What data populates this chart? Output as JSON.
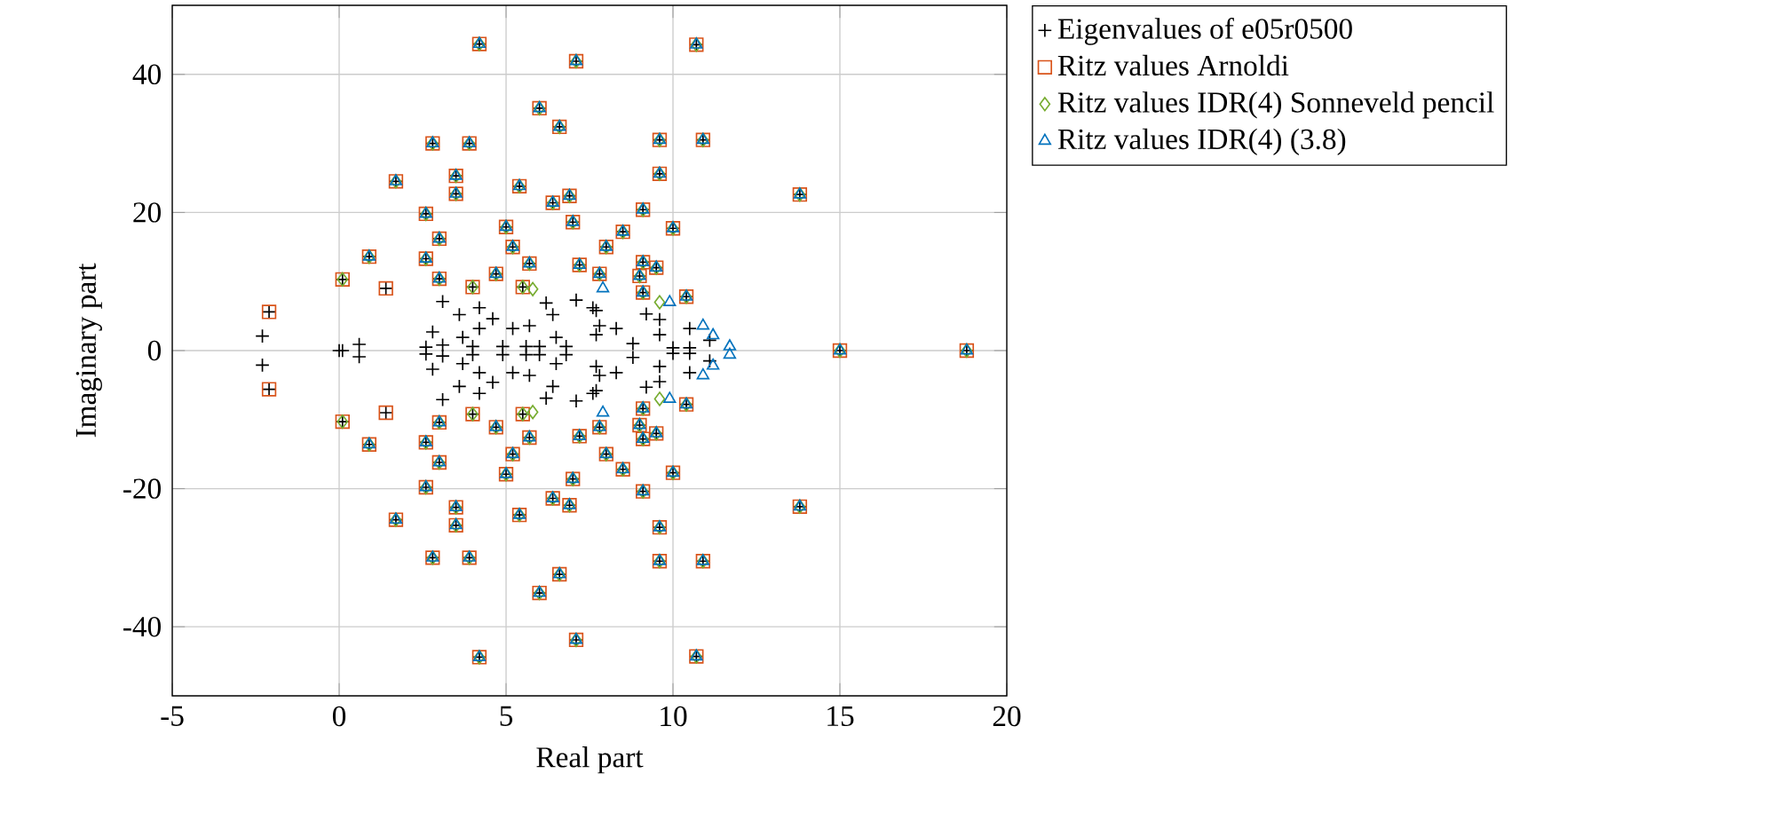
{
  "chart_data": {
    "type": "scatter",
    "xlabel": "Real part",
    "ylabel": "Imaginary part",
    "xlim": [
      -5,
      20
    ],
    "ylim": [
      -50,
      50
    ],
    "xticks": [
      -5,
      0,
      5,
      10,
      15,
      20
    ],
    "yticks": [
      -40,
      -20,
      0,
      20,
      40
    ],
    "grid": true,
    "legend": "top right",
    "series": [
      {
        "name": "Eigenvalues of e05r0500",
        "color": "#000000",
        "marker": "cross",
        "x": [
          4.2,
          7.1,
          6.0,
          6.6,
          2.8,
          3.9,
          1.7,
          3.5,
          3.5,
          5.4,
          6.4,
          6.9,
          2.6,
          7.0,
          5.0,
          3.0,
          5.2,
          0.9,
          2.6,
          5.7,
          7.2,
          4.7,
          3.0,
          0.1,
          1.4,
          4.0,
          5.5,
          -2.1,
          10.7,
          9.6,
          10.9,
          9.6,
          13.8,
          9.1,
          8.5,
          10.0,
          8.0,
          7.8,
          9.1,
          9.5,
          9.0,
          9.1,
          10.4,
          -2.3,
          0.6,
          3.1,
          3.6,
          4.2,
          4.6,
          2.8,
          4.2,
          3.7,
          5.2,
          5.7,
          6.2,
          6.4,
          7.1,
          7.6,
          6.5,
          2.6,
          3.1,
          4.0,
          4.9,
          5.6,
          6.0,
          6.8,
          7.7,
          7.8,
          8.3,
          7.7,
          8.8,
          9.2,
          9.6,
          9.6,
          10.5,
          10.0,
          10.5,
          11.1,
          4.2,
          7.1,
          6.0,
          6.6,
          2.8,
          3.9,
          1.7,
          3.5,
          3.5,
          5.4,
          6.4,
          6.9,
          2.6,
          7.0,
          5.0,
          3.0,
          5.2,
          0.9,
          2.6,
          5.7,
          7.2,
          4.7,
          3.0,
          0.1,
          1.4,
          4.0,
          5.5,
          -2.1,
          10.7,
          9.6,
          10.9,
          9.6,
          13.8,
          9.1,
          8.5,
          10.0,
          8.0,
          7.8,
          9.1,
          9.5,
          9.0,
          9.1,
          10.4,
          -2.3,
          0.6,
          3.1,
          3.6,
          4.2,
          4.6,
          2.8,
          4.2,
          3.7,
          5.2,
          5.7,
          6.2,
          6.4,
          7.1,
          7.6,
          6.5,
          2.6,
          3.1,
          4.0,
          4.9,
          5.6,
          6.0,
          6.8,
          7.7,
          7.8,
          8.3,
          7.7,
          8.8,
          9.2,
          9.6,
          9.6,
          10.5,
          10.0,
          10.5,
          11.1,
          15,
          18.8,
          0,
          0.1
        ],
        "values": [
          44.4,
          41.9,
          35.1,
          32.4,
          30,
          30,
          24.5,
          25.3,
          22.7,
          23.8,
          21.4,
          22.4,
          19.8,
          18.6,
          17.9,
          16.2,
          15,
          13.6,
          13.3,
          12.6,
          12.4,
          11.1,
          10.4,
          10.3,
          9,
          9.2,
          9.2,
          5.6,
          44.3,
          30.5,
          30.5,
          25.6,
          22.6,
          20.4,
          17.2,
          17.7,
          15,
          11.1,
          12.8,
          12,
          10.8,
          8.4,
          7.8,
          2.1,
          0.9,
          7.1,
          5.2,
          6.2,
          4.6,
          2.7,
          3.2,
          1.9,
          3.2,
          3.6,
          6.9,
          5.2,
          7.3,
          6.2,
          1.9,
          0.5,
          0.8,
          0.6,
          0.6,
          0.6,
          0.6,
          0.6,
          5.8,
          3.6,
          3.2,
          2.3,
          1,
          5.3,
          4.5,
          2.3,
          3.2,
          0.4,
          0.4,
          1.5,
          -44.4,
          -41.9,
          -35.1,
          -32.4,
          -30,
          -30,
          -24.5,
          -25.3,
          -22.7,
          -23.8,
          -21.4,
          -22.4,
          -19.8,
          -18.6,
          -17.9,
          -16.2,
          -15,
          -13.6,
          -13.3,
          -12.6,
          -12.4,
          -11.1,
          -10.4,
          -10.3,
          -9,
          -9.2,
          -9.2,
          -5.6,
          -44.3,
          -30.5,
          -30.5,
          -25.6,
          -22.6,
          -20.4,
          -17.2,
          -17.7,
          -15,
          -11.1,
          -12.8,
          -12,
          -10.8,
          -8.4,
          -7.8,
          -2.1,
          -0.9,
          -7.1,
          -5.2,
          -6.2,
          -4.6,
          -2.7,
          -3.2,
          -1.9,
          -3.2,
          -3.6,
          -6.9,
          -5.2,
          -7.3,
          -6.2,
          -1.9,
          -0.5,
          -0.8,
          -0.6,
          -0.6,
          -0.6,
          -0.6,
          -0.6,
          -5.8,
          -3.6,
          -3.2,
          -2.3,
          -1,
          -5.3,
          -4.5,
          -2.3,
          -3.2,
          -0.4,
          -0.4,
          -1.5,
          0,
          0,
          0,
          0
        ]
      },
      {
        "name": "Ritz values Arnoldi",
        "color": "#d95319",
        "marker": "square",
        "x": [
          4.2,
          7.1,
          6.0,
          6.6,
          2.8,
          3.9,
          1.7,
          3.5,
          3.5,
          5.4,
          6.4,
          6.9,
          2.6,
          7.0,
          5.0,
          3.0,
          5.2,
          0.9,
          2.6,
          5.7,
          7.2,
          4.7,
          3.0,
          0.1,
          1.4,
          4.0,
          5.5,
          -2.1,
          10.7,
          9.6,
          10.9,
          9.6,
          13.8,
          9.1,
          8.5,
          10.0,
          8.0,
          7.8,
          9.1,
          9.5,
          9.0,
          9.1,
          10.4,
          4.2,
          7.1,
          6.0,
          6.6,
          2.8,
          3.9,
          1.7,
          3.5,
          3.5,
          5.4,
          6.4,
          6.9,
          2.6,
          7.0,
          5.0,
          3.0,
          5.2,
          0.9,
          2.6,
          5.7,
          7.2,
          4.7,
          3.0,
          0.1,
          1.4,
          4.0,
          5.5,
          -2.1,
          10.7,
          9.6,
          10.9,
          9.6,
          13.8,
          9.1,
          8.5,
          10.0,
          8.0,
          7.8,
          9.1,
          9.5,
          9.0,
          9.1,
          10.4,
          15,
          18.8
        ],
        "values": [
          44.4,
          41.9,
          35.1,
          32.4,
          30,
          30,
          24.5,
          25.3,
          22.7,
          23.8,
          21.4,
          22.4,
          19.8,
          18.6,
          17.9,
          16.2,
          15,
          13.6,
          13.3,
          12.6,
          12.4,
          11.1,
          10.4,
          10.3,
          9,
          9.2,
          9.2,
          5.6,
          44.3,
          30.5,
          30.5,
          25.6,
          22.6,
          20.4,
          17.2,
          17.7,
          15,
          11.1,
          12.8,
          12,
          10.8,
          8.4,
          7.8,
          -44.4,
          -41.9,
          -35.1,
          -32.4,
          -30,
          -30,
          -24.5,
          -25.3,
          -22.7,
          -23.8,
          -21.4,
          -22.4,
          -19.8,
          -18.6,
          -17.9,
          -16.2,
          -15,
          -13.6,
          -13.3,
          -12.6,
          -12.4,
          -11.1,
          -10.4,
          -10.3,
          -9,
          -9.2,
          -9.2,
          -5.6,
          -44.3,
          -30.5,
          -30.5,
          -25.6,
          -22.6,
          -20.4,
          -17.2,
          -17.7,
          -15,
          -11.1,
          -12.8,
          -12,
          -10.8,
          -8.4,
          -7.8,
          0,
          0
        ]
      },
      {
        "name": "Ritz values IDR(4) Sonneveld pencil",
        "color": "#77ac30",
        "marker": "diamond",
        "x": [
          4.2,
          7.1,
          6.0,
          6.6,
          2.8,
          3.9,
          1.7,
          3.5,
          3.5,
          5.4,
          6.4,
          6.9,
          2.6,
          7.0,
          5.0,
          3.0,
          5.2,
          0.9,
          2.6,
          5.7,
          7.2,
          4.7,
          3.0,
          0.1,
          4.0,
          5.5,
          10.7,
          9.6,
          10.9,
          9.6,
          13.8,
          9.1,
          8.5,
          10.0,
          8.0,
          7.8,
          9.1,
          9.5,
          9.0,
          9.1,
          10.4,
          5.8,
          9.6,
          4.2,
          7.1,
          6.0,
          6.6,
          2.8,
          3.9,
          1.7,
          3.5,
          3.5,
          5.4,
          6.4,
          6.9,
          2.6,
          7.0,
          5.0,
          3.0,
          5.2,
          0.9,
          2.6,
          5.7,
          7.2,
          4.7,
          3.0,
          0.1,
          4.0,
          5.5,
          10.7,
          9.6,
          10.9,
          9.6,
          13.8,
          9.1,
          8.5,
          10.0,
          8.0,
          7.8,
          9.1,
          9.5,
          9.0,
          9.1,
          10.4,
          5.8,
          9.6,
          15,
          18.8
        ],
        "values": [
          44.4,
          41.9,
          35.1,
          32.4,
          30,
          30,
          24.5,
          25.3,
          22.7,
          23.8,
          21.4,
          22.4,
          19.8,
          18.6,
          17.9,
          16.2,
          15,
          13.6,
          13.3,
          12.6,
          12.4,
          11.1,
          10.4,
          10.3,
          9.2,
          9.2,
          44.3,
          30.5,
          30.5,
          25.6,
          22.6,
          20.4,
          17.2,
          17.7,
          15,
          11.1,
          12.8,
          12,
          10.8,
          8.4,
          7.8,
          8.9,
          7,
          -44.4,
          -41.9,
          -35.1,
          -32.4,
          -30,
          -30,
          -24.5,
          -25.3,
          -22.7,
          -23.8,
          -21.4,
          -22.4,
          -19.8,
          -18.6,
          -17.9,
          -16.2,
          -15,
          -13.6,
          -13.3,
          -12.6,
          -12.4,
          -11.1,
          -10.4,
          -10.3,
          -9.2,
          -9.2,
          -44.3,
          -30.5,
          -30.5,
          -25.6,
          -22.6,
          -20.4,
          -17.2,
          -17.7,
          -15,
          -11.1,
          -12.8,
          -12,
          -10.8,
          -8.4,
          -7.8,
          -8.9,
          -7,
          0,
          0
        ]
      },
      {
        "name": "Ritz values IDR(4) (3.8)",
        "color": "#0072bd",
        "marker": "triangle",
        "x": [
          4.2,
          7.1,
          6.0,
          6.6,
          2.8,
          3.9,
          1.7,
          3.5,
          3.5,
          5.4,
          6.4,
          6.9,
          2.6,
          7.0,
          5.0,
          3.0,
          5.2,
          0.9,
          2.6,
          5.7,
          7.2,
          4.7,
          3.0,
          10.7,
          9.6,
          10.9,
          9.6,
          13.8,
          9.1,
          8.5,
          10.0,
          8.0,
          7.8,
          9.1,
          9.5,
          9.0,
          9.1,
          10.4,
          7.9,
          9.9,
          10.9,
          11.2,
          11.7,
          4.2,
          7.1,
          6.0,
          6.6,
          2.8,
          3.9,
          1.7,
          3.5,
          3.5,
          5.4,
          6.4,
          6.9,
          2.6,
          7.0,
          5.0,
          3.0,
          5.2,
          0.9,
          2.6,
          5.7,
          7.2,
          4.7,
          3.0,
          10.7,
          9.6,
          10.9,
          9.6,
          13.8,
          9.1,
          8.5,
          10.0,
          8.0,
          7.8,
          9.1,
          9.5,
          9.0,
          9.1,
          10.4,
          7.9,
          9.9,
          10.9,
          11.2,
          11.7,
          15,
          18.8
        ],
        "values": [
          44.4,
          41.9,
          35.1,
          32.4,
          30,
          30,
          24.5,
          25.3,
          22.7,
          23.8,
          21.4,
          22.4,
          19.8,
          18.6,
          17.9,
          16.2,
          15,
          13.6,
          13.3,
          12.6,
          12.4,
          11.1,
          10.4,
          44.3,
          30.5,
          30.5,
          25.6,
          22.6,
          20.4,
          17.2,
          17.7,
          15,
          11.1,
          12.8,
          12,
          10.8,
          8.4,
          7.8,
          9,
          7,
          3.6,
          2.2,
          0.6,
          -44.4,
          -41.9,
          -35.1,
          -32.4,
          -30,
          -30,
          -24.5,
          -25.3,
          -22.7,
          -23.8,
          -21.4,
          -22.4,
          -19.8,
          -18.6,
          -17.9,
          -16.2,
          -15,
          -13.6,
          -13.3,
          -12.6,
          -12.4,
          -11.1,
          -10.4,
          -44.3,
          -30.5,
          -30.5,
          -25.6,
          -22.6,
          -20.4,
          -17.2,
          -17.7,
          -15,
          -11.1,
          -12.8,
          -12,
          -10.8,
          -8.4,
          -7.8,
          -9,
          -7,
          -3.6,
          -2.2,
          -0.6,
          0,
          0
        ]
      }
    ]
  }
}
